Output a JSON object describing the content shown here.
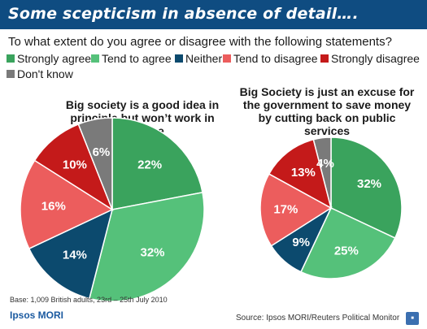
{
  "banner": {
    "title": "Some scepticism in absence of detail…."
  },
  "question": "To what extent do you agree or disagree with the following statements?",
  "colors": {
    "strongly_agree": "#3aa35d",
    "tend_to_agree": "#55c17a",
    "neither": "#0c4a6e",
    "tend_to_disagree": "#ec5d5d",
    "strongly_disagree": "#c41a1a",
    "dont_know": "#7a7a7a",
    "banner": "#0f4c81"
  },
  "legend": [
    {
      "key": "strongly_agree",
      "label": "Strongly agree"
    },
    {
      "key": "tend_to_agree",
      "label": "Tend to agree"
    },
    {
      "key": "neither",
      "label": "Neither"
    },
    {
      "key": "tend_to_disagree",
      "label": "Tend to disagree"
    },
    {
      "key": "strongly_disagree",
      "label": "Strongly disagree"
    },
    {
      "key": "dont_know",
      "label": "Don't know"
    }
  ],
  "chart_data": [
    {
      "type": "pie",
      "title": "Big society is a good idea in principle but won’t work in practice",
      "title_lines": [
        "Big society is a good idea in",
        "principle but won’t work in",
        "practice"
      ],
      "categories": [
        "Strongly agree",
        "Tend to agree",
        "Neither",
        "Tend to disagree",
        "Strongly disagree",
        "Don't know"
      ],
      "values": [
        22,
        32,
        14,
        16,
        10,
        6
      ],
      "labels": [
        "22%",
        "32%",
        "14%",
        "16%",
        "10%",
        "6%"
      ]
    },
    {
      "type": "pie",
      "title": "Big Society is just an excuse for the government to save money by cutting back on public services",
      "title_lines": [
        "Big Society is just an excuse for",
        "the government to save money",
        "by cutting back on public",
        "services"
      ],
      "categories": [
        "Strongly agree",
        "Tend to agree",
        "Neither",
        "Tend to disagree",
        "Strongly disagree",
        "Don't know"
      ],
      "values": [
        32,
        25,
        9,
        17,
        13,
        4
      ],
      "labels": [
        "32%",
        "25%",
        "9%",
        "17%",
        "13%",
        "4%"
      ]
    }
  ],
  "footer": {
    "base": "Base: 1,009 British adults,   23rd – 25th July 2010",
    "logo": "Ipsos MORI",
    "source": "Source: Ipsos MORI/Reuters Political Monitor"
  }
}
